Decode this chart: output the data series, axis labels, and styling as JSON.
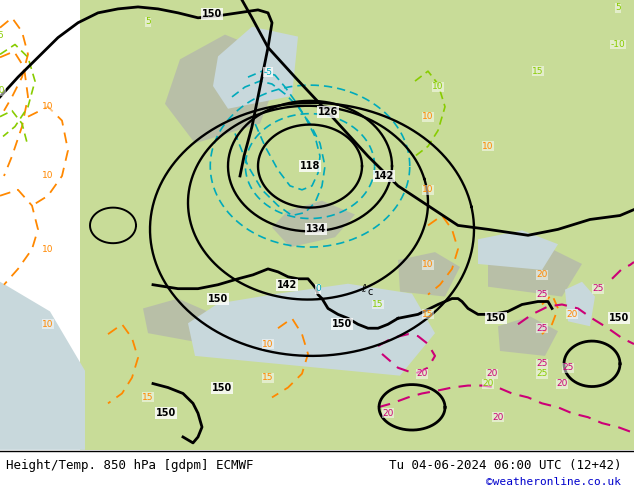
{
  "title_left": "Height/Temp. 850 hPa [gdpm] ECMWF",
  "title_right": "Tu 04-06-2024 06:00 UTC (12+42)",
  "watermark": "©weatheronline.co.uk",
  "fig_width": 6.34,
  "fig_height": 4.9,
  "dpi": 100,
  "title_fontsize": 9,
  "watermark_color": "#0000cc",
  "bottom_bar_height": 0.082,
  "contour_black_lw": 2.0,
  "cyan_color": "#00aabb",
  "orange_color": "#ff8800",
  "green_color": "#88cc00",
  "pink_color": "#cc0077"
}
